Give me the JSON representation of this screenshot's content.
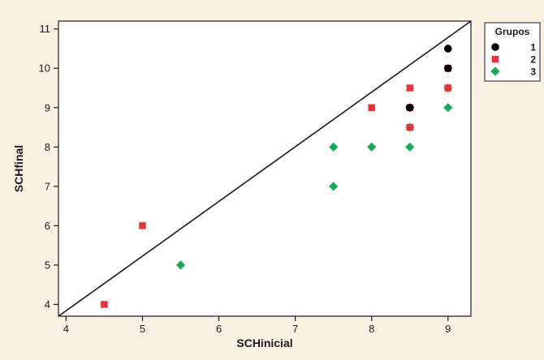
{
  "chart_data": {
    "type": "scatter",
    "title": "",
    "xlabel": "SCHinicial",
    "ylabel": "SCHfinal",
    "xlim": [
      3.9,
      9.3
    ],
    "ylim": [
      3.7,
      11.2
    ],
    "x_ticks": [
      4,
      5,
      6,
      7,
      8,
      9
    ],
    "y_ticks": [
      4,
      5,
      6,
      7,
      8,
      9,
      10,
      11
    ],
    "grid": false,
    "reference_line": {
      "from": [
        3.9,
        3.7
      ],
      "to": [
        9.3,
        11.2
      ],
      "color": "#1a1a1a"
    },
    "legend": {
      "title": "Grupos",
      "placement": "outside-top-right"
    },
    "series": [
      {
        "name": "1",
        "marker": "circle",
        "color": "#000000",
        "points": [
          {
            "x": 9.0,
            "y": 10.5
          },
          {
            "x": 9.0,
            "y": 10.0
          },
          {
            "x": 8.5,
            "y": 9.0
          }
        ]
      },
      {
        "name": "2",
        "marker": "square",
        "color": "#e8333c",
        "points": [
          {
            "x": 4.5,
            "y": 4.0
          },
          {
            "x": 5.0,
            "y": 6.0
          },
          {
            "x": 8.0,
            "y": 9.0
          },
          {
            "x": 8.5,
            "y": 9.5
          },
          {
            "x": 8.5,
            "y": 9.0
          },
          {
            "x": 8.5,
            "y": 8.5
          },
          {
            "x": 9.0,
            "y": 10.0
          },
          {
            "x": 9.0,
            "y": 9.5
          }
        ]
      },
      {
        "name": "3",
        "marker": "diamond",
        "color": "#1aa85a",
        "points": [
          {
            "x": 5.5,
            "y": 5.0
          },
          {
            "x": 7.5,
            "y": 7.0
          },
          {
            "x": 7.5,
            "y": 8.0
          },
          {
            "x": 8.0,
            "y": 8.0
          },
          {
            "x": 8.5,
            "y": 8.0
          },
          {
            "x": 8.5,
            "y": 8.5
          },
          {
            "x": 8.5,
            "y": 9.0
          },
          {
            "x": 9.0,
            "y": 9.0
          },
          {
            "x": 9.0,
            "y": 9.5
          }
        ]
      }
    ]
  },
  "colors": {
    "background": "#fbf1e3",
    "plot_area": "#ffffff",
    "axis": "#1a1a1a"
  }
}
